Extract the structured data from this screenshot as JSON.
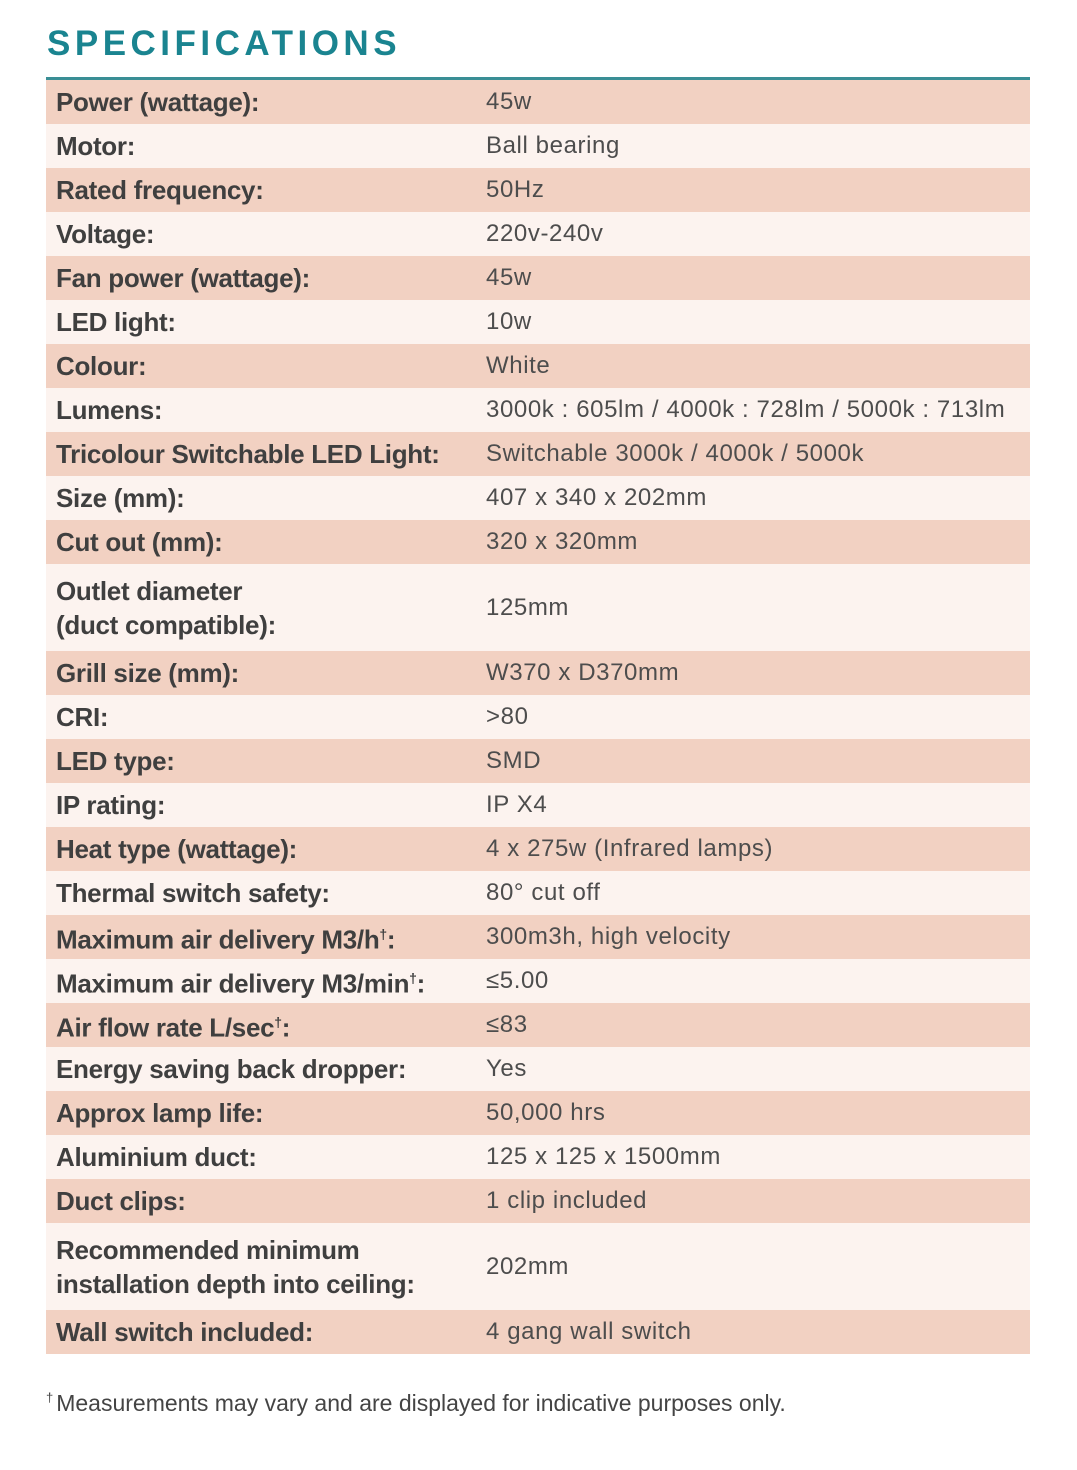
{
  "title": "SPECIFICATIONS",
  "accent_color": "#1a8490",
  "row_colors": [
    "#f2d1c2",
    "#fcf3ef"
  ],
  "rows": [
    {
      "label": "Power (wattage):",
      "sup": "",
      "value": "45w"
    },
    {
      "label": "Motor:",
      "sup": "",
      "value": "Ball bearing"
    },
    {
      "label": "Rated frequency:",
      "sup": "",
      "value": "50Hz"
    },
    {
      "label": "Voltage:",
      "sup": "",
      "value": "220v-240v"
    },
    {
      "label": "Fan power (wattage):",
      "sup": "",
      "value": "45w"
    },
    {
      "label": "LED light:",
      "sup": "",
      "value": "10w"
    },
    {
      "label": "Colour:",
      "sup": "",
      "value": "White"
    },
    {
      "label": "Lumens:",
      "sup": "",
      "value": "3000k : 605lm / 4000k : 728lm / 5000k : 713lm"
    },
    {
      "label": "Tricolour Switchable LED Light:",
      "sup": "",
      "value": "Switchable 3000k / 4000k / 5000k"
    },
    {
      "label": "Size (mm):",
      "sup": "",
      "value": "407 x 340 x 202mm"
    },
    {
      "label": "Cut out (mm):",
      "sup": "",
      "value": "320 x 320mm"
    },
    {
      "label": "Outlet diameter\n(duct compatible):",
      "sup": "",
      "value": "125mm",
      "tall": true
    },
    {
      "label": "Grill size (mm):",
      "sup": "",
      "value": "W370 x D370mm"
    },
    {
      "label": "CRI:",
      "sup": "",
      "value": ">80"
    },
    {
      "label": "LED type:",
      "sup": "",
      "value": "SMD"
    },
    {
      "label": "IP rating:",
      "sup": "",
      "value": "IP X4"
    },
    {
      "label": "Heat type (wattage):",
      "sup": "",
      "value": "4 x 275w (Infrared lamps)"
    },
    {
      "label": "Thermal switch safety:",
      "sup": "",
      "value": "80° cut off"
    },
    {
      "label": "Maximum air delivery M3/h",
      "sup": "†",
      "value": "300m3h, high velocity"
    },
    {
      "label": "Maximum air delivery M3/min",
      "sup": "†",
      "value": "≤5.00"
    },
    {
      "label": "Air flow rate L/sec",
      "sup": "†",
      "value": "≤83"
    },
    {
      "label": "Energy saving back dropper:",
      "sup": "",
      "value": "Yes"
    },
    {
      "label": "Approx lamp life:",
      "sup": "",
      "value": "50,000 hrs"
    },
    {
      "label": "Aluminium duct:",
      "sup": "",
      "value": "125 x 125 x 1500mm"
    },
    {
      "label": "Duct clips:",
      "sup": "",
      "value": "1 clip included"
    },
    {
      "label": "Recommended minimum\ninstallation depth into ceiling:",
      "sup": "",
      "value": "202mm",
      "tall": true
    },
    {
      "label": "Wall switch included:",
      "sup": "",
      "value": "4 gang wall switch"
    }
  ],
  "footnote": {
    "mark": "†",
    "text": "Measurements may vary and are displayed for indicative purposes only."
  }
}
